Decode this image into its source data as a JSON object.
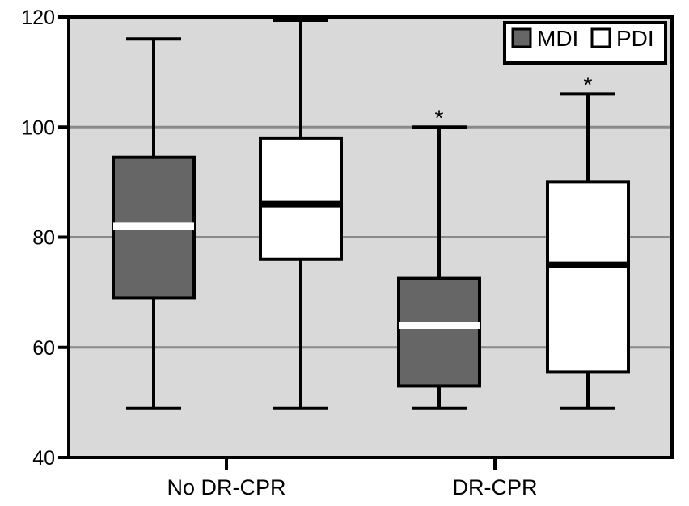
{
  "figure": {
    "background": "#ffffff",
    "plot_background": "#d9d9d9",
    "gridline_color": "#8a8a8a",
    "axis_color": "#000000",
    "significance_marker": "*"
  },
  "chart_data": {
    "type": "boxplot",
    "title": "",
    "xlabel": "",
    "ylabel": "",
    "categories": [
      "No DR-CPR",
      "DR-CPR"
    ],
    "y_axis": {
      "min": 40,
      "max": 120,
      "ticks": [
        120,
        100,
        80,
        60,
        40
      ],
      "gridlines": [
        100,
        80,
        60
      ]
    },
    "grid": true,
    "legend": {
      "position": "top-right",
      "items": [
        {
          "label": "MDI",
          "swatch_fill": "#666666"
        },
        {
          "label": "PDI",
          "swatch_fill": "#ffffff"
        }
      ]
    },
    "series": [
      {
        "name": "MDI",
        "fill": "#666666",
        "median_color": "#ffffff",
        "boxes": [
          {
            "category": "No DR-CPR",
            "whisker_low": 49,
            "q1": 69,
            "median": 82,
            "q3": 94.5,
            "whisker_high": 116,
            "annotation": ""
          },
          {
            "category": "DR-CPR",
            "whisker_low": 49,
            "q1": 53,
            "median": 64,
            "q3": 72.5,
            "whisker_high": 100,
            "annotation": "*"
          }
        ]
      },
      {
        "name": "PDI",
        "fill": "#ffffff",
        "median_color": "#000000",
        "boxes": [
          {
            "category": "No DR-CPR",
            "whisker_low": 49,
            "q1": 76,
            "median": 86,
            "q3": 98,
            "whisker_high": 120,
            "annotation": ""
          },
          {
            "category": "DR-CPR",
            "whisker_low": 49,
            "q1": 55.5,
            "median": 75,
            "q3": 90,
            "whisker_high": 106,
            "annotation": "*"
          }
        ]
      }
    ]
  }
}
